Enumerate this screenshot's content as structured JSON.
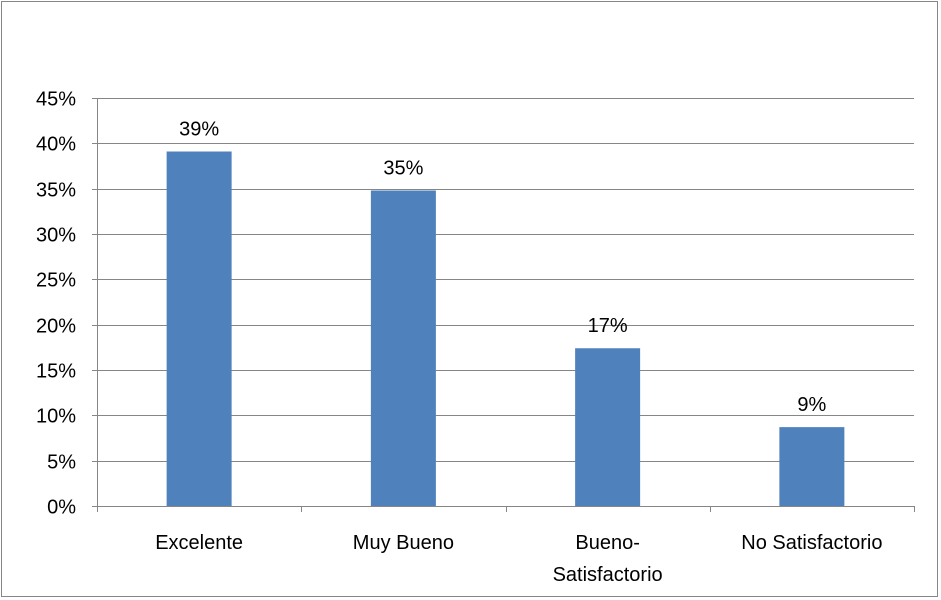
{
  "chart_data": {
    "type": "bar",
    "categories": [
      "Excelente",
      "Muy Bueno",
      "Bueno-Satisfactorio",
      "No Satisfactorio"
    ],
    "category_label_lines": [
      [
        "Excelente"
      ],
      [
        "Muy Bueno"
      ],
      [
        "Bueno-",
        "Satisfactorio"
      ],
      [
        "No Satisfactorio"
      ]
    ],
    "values": [
      39,
      35,
      17,
      9
    ],
    "value_labels": [
      "39%",
      "35%",
      "17%",
      "9%"
    ],
    "values_precise": [
      39.1,
      34.8,
      17.4,
      8.7
    ],
    "ylim": [
      0,
      45
    ],
    "y_ticks": [
      0,
      5,
      10,
      15,
      20,
      25,
      30,
      35,
      40,
      45
    ],
    "y_tick_labels": [
      "0%",
      "5%",
      "10%",
      "15%",
      "20%",
      "25%",
      "30%",
      "35%",
      "40%",
      "45%"
    ],
    "grid": true,
    "legend": false,
    "colors": {
      "bar": "#4f81bd",
      "grid": "#868686",
      "axis": "#868686",
      "border": "#868686"
    }
  }
}
